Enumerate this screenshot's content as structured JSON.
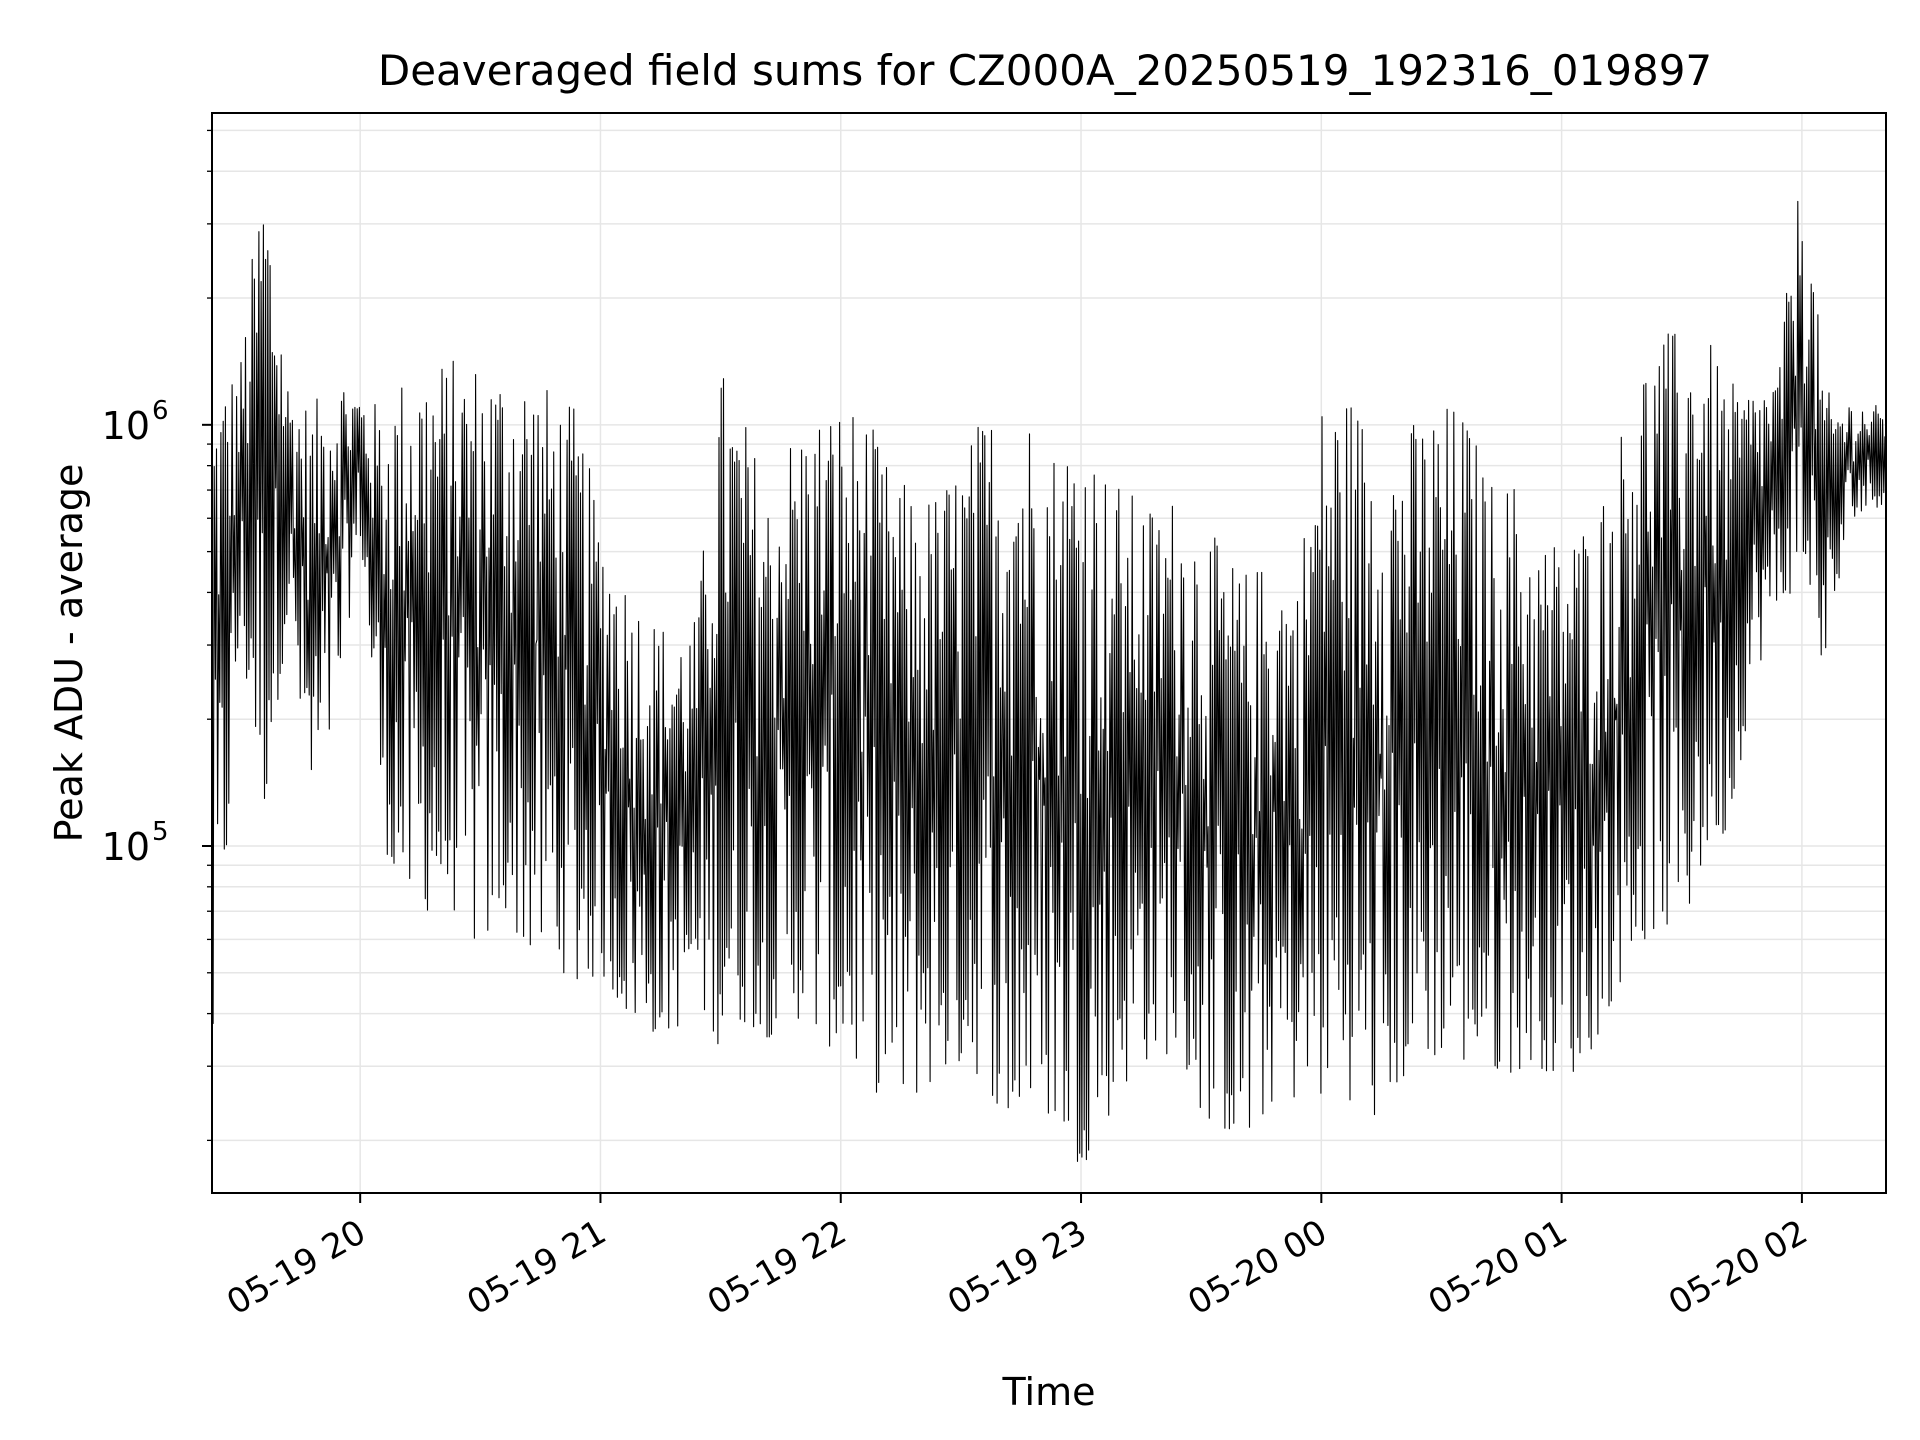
{
  "chart_data": {
    "type": "line",
    "title": "Deaveraged field sums for CZ000A_20250519_192316_019897",
    "xlabel": "Time",
    "ylabel": "Peak ADU - average",
    "x_ticks": [
      "05-19 20",
      "05-19 21",
      "05-19 22",
      "05-19 23",
      "05-20 00",
      "05-20 01",
      "05-20 02"
    ],
    "y_ticks": [
      {
        "base": "10",
        "exp": "5",
        "value": 100000
      },
      {
        "base": "10",
        "exp": "6",
        "value": 1000000
      }
    ],
    "xlim": [
      "2025-05-19 19:23",
      "2025-05-20 02:21"
    ],
    "ylim": [
      15000,
      5500000
    ],
    "yscale": "log",
    "grid": true,
    "line_color": "#000000",
    "grid_color": "#e6e6e6",
    "series": [
      {
        "x": [
          "2025-05-19 19:23",
          "2025-05-19 19:30",
          "2025-05-19 19:36",
          "2025-05-19 19:42",
          "2025-05-19 19:48",
          "2025-05-19 19:54",
          "2025-05-19 20:00",
          "2025-05-19 20:06",
          "2025-05-19 20:12",
          "2025-05-19 20:18",
          "2025-05-19 20:24",
          "2025-05-19 20:30",
          "2025-05-19 20:36",
          "2025-05-19 20:42",
          "2025-05-19 20:48",
          "2025-05-19 20:54",
          "2025-05-19 21:00",
          "2025-05-19 21:06",
          "2025-05-19 21:12",
          "2025-05-19 21:18",
          "2025-05-19 21:24",
          "2025-05-19 21:30",
          "2025-05-19 21:36",
          "2025-05-19 21:42",
          "2025-05-19 21:48",
          "2025-05-19 21:54",
          "2025-05-19 22:00",
          "2025-05-19 22:06",
          "2025-05-19 22:12",
          "2025-05-19 22:18",
          "2025-05-19 22:24",
          "2025-05-19 22:30",
          "2025-05-19 22:36",
          "2025-05-19 22:42",
          "2025-05-19 22:48",
          "2025-05-19 22:54",
          "2025-05-19 23:00",
          "2025-05-19 23:06",
          "2025-05-19 23:12",
          "2025-05-19 23:18",
          "2025-05-19 23:24",
          "2025-05-19 23:30",
          "2025-05-19 23:36",
          "2025-05-19 23:42",
          "2025-05-19 23:48",
          "2025-05-19 23:54",
          "2025-05-20 00:00",
          "2025-05-20 00:06",
          "2025-05-20 00:12",
          "2025-05-20 00:18",
          "2025-05-20 00:24",
          "2025-05-20 00:30",
          "2025-05-20 00:36",
          "2025-05-20 00:42",
          "2025-05-20 00:48",
          "2025-05-20 00:54",
          "2025-05-20 01:00",
          "2025-05-20 01:06",
          "2025-05-20 01:12",
          "2025-05-20 01:18",
          "2025-05-20 01:24",
          "2025-05-20 01:30",
          "2025-05-20 01:36",
          "2025-05-20 01:42",
          "2025-05-20 01:48",
          "2025-05-20 01:54",
          "2025-05-20 02:00",
          "2025-05-20 02:06",
          "2025-05-20 02:12",
          "2025-05-20 02:21"
        ],
        "y_high": [
          1300000,
          1400000,
          4500000,
          1300000,
          1100000,
          1400000,
          1200000,
          1100000,
          1400000,
          1450000,
          1450000,
          1450000,
          1400000,
          1400000,
          1200000,
          1100000,
          600000,
          450000,
          360000,
          330000,
          350000,
          1400000,
          1050000,
          700000,
          1000000,
          1100000,
          1150000,
          1100000,
          800000,
          700000,
          700000,
          850000,
          1100000,
          1150000,
          1100000,
          900000,
          1100000,
          800000,
          700000,
          650000,
          700000,
          600000,
          500000,
          450000,
          500000,
          450000,
          1150000,
          1250000,
          1050000,
          950000,
          1050000,
          1150000,
          1100000,
          750000,
          750000,
          550000,
          550000,
          600000,
          750000,
          1350000,
          1650000,
          1700000,
          1650000,
          1250000,
          1250000,
          1350000,
          4300000,
          1200000,
          1150000,
          1100000
        ],
        "y_low": [
          25000,
          300000,
          120000,
          350000,
          110000,
          200000,
          550000,
          100000,
          70000,
          70000,
          70000,
          55000,
          70000,
          55000,
          55000,
          45000,
          50000,
          40000,
          36000,
          36000,
          42000,
          33000,
          38000,
          35000,
          40000,
          35000,
          32000,
          28000,
          24000,
          25000,
          28000,
          30000,
          28000,
          21000,
          24000,
          22000,
          17000,
          22000,
          28000,
          32000,
          32000,
          23000,
          21000,
          19000,
          25000,
          25000,
          25000,
          26000,
          21000,
          26000,
          30000,
          32000,
          30000,
          29000,
          29000,
          30000,
          28000,
          30000,
          42000,
          55000,
          65000,
          60000,
          95000,
          110000,
          250000,
          350000,
          450000,
          250000,
          600000,
          650000
        ]
      }
    ]
  }
}
